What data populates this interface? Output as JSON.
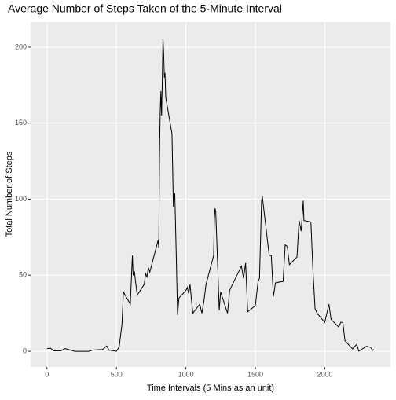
{
  "chart_data": {
    "type": "line",
    "title": "Average Number of Steps Taken of the 5-Minute Interval",
    "xlabel": "Time Intervals (5 Mins as an unit)",
    "ylabel": "Total Number of Steps",
    "x": [
      0,
      25,
      50,
      100,
      130,
      200,
      230,
      300,
      330,
      400,
      430,
      445,
      500,
      520,
      540,
      550,
      600,
      610,
      615,
      620,
      630,
      640,
      650,
      700,
      710,
      720,
      730,
      740,
      800,
      805,
      810,
      815,
      820,
      825,
      830,
      835,
      840,
      845,
      850,
      855,
      900,
      910,
      920,
      930,
      940,
      950,
      1000,
      1010,
      1020,
      1030,
      1040,
      1050,
      1100,
      1115,
      1130,
      1145,
      1200,
      1205,
      1210,
      1215,
      1230,
      1240,
      1250,
      1300,
      1315,
      1330,
      1400,
      1415,
      1430,
      1445,
      1500,
      1520,
      1530,
      1545,
      1550,
      1600,
      1615,
      1630,
      1645,
      1700,
      1715,
      1730,
      1745,
      1800,
      1815,
      1830,
      1845,
      1850,
      1900,
      1915,
      1930,
      1945,
      2000,
      2030,
      2045,
      2100,
      2115,
      2130,
      2145,
      2200,
      2230,
      2245,
      2300,
      2330,
      2345,
      2355
    ],
    "series": [
      {
        "name": "steps",
        "color": "#000000",
        "values": [
          1.7,
          2.1,
          0.3,
          0.3,
          1.8,
          0,
          0,
          0,
          0.8,
          1.2,
          3.5,
          0.8,
          0,
          3,
          18,
          39,
          31,
          53,
          63,
          50,
          52,
          44,
          37,
          44,
          51,
          49,
          55,
          52,
          73,
          68,
          129,
          157,
          171,
          155,
          177,
          206,
          196,
          180,
          183,
          167,
          143,
          95,
          104,
          66,
          24,
          35,
          40,
          42,
          38,
          44,
          34,
          25,
          31,
          25,
          33,
          44,
          63,
          87,
          94,
          92,
          54,
          27,
          39,
          25,
          40,
          43,
          56,
          48,
          58,
          26,
          30,
          46,
          48,
          99,
          102,
          63,
          63,
          36,
          45,
          46,
          70,
          69,
          57,
          62,
          86,
          79,
          99,
          86,
          85,
          53,
          28,
          25,
          19,
          31,
          21,
          16,
          19,
          19,
          7,
          1.6,
          4.6,
          0.1,
          3.3,
          2.6,
          0.6,
          1.1
        ]
      }
    ],
    "xlim": [
      -117.75,
      2472.75
    ],
    "xticks": [
      0,
      500,
      1000,
      1500,
      2000
    ],
    "ylim": [
      -10.3,
      216.5
    ],
    "yticks": [
      0,
      50,
      100,
      150,
      200
    ],
    "grid": true
  }
}
